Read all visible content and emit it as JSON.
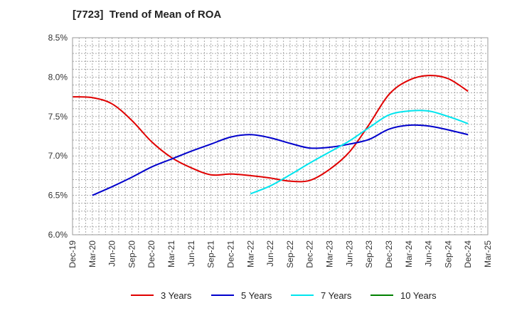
{
  "chart_data": {
    "type": "line",
    "title": "[7723]  Trend of Mean of ROA",
    "xlabel": "",
    "ylabel": "",
    "x_ticks": [
      "Dec-19",
      "Mar-20",
      "Jun-20",
      "Sep-20",
      "Dec-20",
      "Mar-21",
      "Jun-21",
      "Sep-21",
      "Dec-21",
      "Mar-22",
      "Jun-22",
      "Sep-22",
      "Dec-22",
      "Mar-23",
      "Jun-23",
      "Sep-23",
      "Dec-23",
      "Mar-24",
      "Jun-24",
      "Sep-24",
      "Dec-24",
      "Mar-25"
    ],
    "y_ticks": [
      "6.0%",
      "6.5%",
      "7.0%",
      "7.5%",
      "8.0%",
      "8.5%"
    ],
    "ylim": [
      6.0,
      8.5
    ],
    "grid": true,
    "legend_position": "bottom",
    "series": [
      {
        "name": "3 Years",
        "color": "#e00000",
        "points": [
          [
            "Dec-19",
            7.75
          ],
          [
            "Mar-20",
            7.74
          ],
          [
            "Jun-20",
            7.66
          ],
          [
            "Sep-20",
            7.45
          ],
          [
            "Dec-20",
            7.18
          ],
          [
            "Mar-21",
            6.98
          ],
          [
            "Jun-21",
            6.85
          ],
          [
            "Sep-21",
            6.76
          ],
          [
            "Dec-21",
            6.77
          ],
          [
            "Mar-22",
            6.75
          ],
          [
            "Jun-22",
            6.72
          ],
          [
            "Sep-22",
            6.68
          ],
          [
            "Dec-22",
            6.69
          ],
          [
            "Mar-23",
            6.83
          ],
          [
            "Jun-23",
            7.05
          ],
          [
            "Sep-23",
            7.4
          ],
          [
            "Dec-23",
            7.78
          ],
          [
            "Mar-24",
            7.96
          ],
          [
            "Jun-24",
            8.02
          ],
          [
            "Sep-24",
            7.98
          ],
          [
            "Dec-24",
            7.82
          ]
        ]
      },
      {
        "name": "5 Years",
        "color": "#0000cc",
        "points": [
          [
            "Mar-20",
            6.5
          ],
          [
            "Jun-20",
            6.61
          ],
          [
            "Sep-20",
            6.73
          ],
          [
            "Dec-20",
            6.86
          ],
          [
            "Mar-21",
            6.96
          ],
          [
            "Jun-21",
            7.06
          ],
          [
            "Sep-21",
            7.15
          ],
          [
            "Dec-21",
            7.24
          ],
          [
            "Mar-22",
            7.27
          ],
          [
            "Jun-22",
            7.23
          ],
          [
            "Sep-22",
            7.16
          ],
          [
            "Dec-22",
            7.1
          ],
          [
            "Mar-23",
            7.11
          ],
          [
            "Jun-23",
            7.15
          ],
          [
            "Sep-23",
            7.21
          ],
          [
            "Dec-23",
            7.34
          ],
          [
            "Mar-24",
            7.39
          ],
          [
            "Jun-24",
            7.38
          ],
          [
            "Sep-24",
            7.33
          ],
          [
            "Dec-24",
            7.27
          ]
        ]
      },
      {
        "name": "7 Years",
        "color": "#00e5ee",
        "points": [
          [
            "Mar-22",
            6.52
          ],
          [
            "Jun-22",
            6.62
          ],
          [
            "Sep-22",
            6.76
          ],
          [
            "Dec-22",
            6.91
          ],
          [
            "Mar-23",
            7.05
          ],
          [
            "Jun-23",
            7.19
          ],
          [
            "Sep-23",
            7.36
          ],
          [
            "Dec-23",
            7.52
          ],
          [
            "Mar-24",
            7.57
          ],
          [
            "Jun-24",
            7.57
          ],
          [
            "Sep-24",
            7.5
          ],
          [
            "Dec-24",
            7.41
          ]
        ]
      },
      {
        "name": "10 Years",
        "color": "#008000",
        "points": []
      }
    ]
  }
}
